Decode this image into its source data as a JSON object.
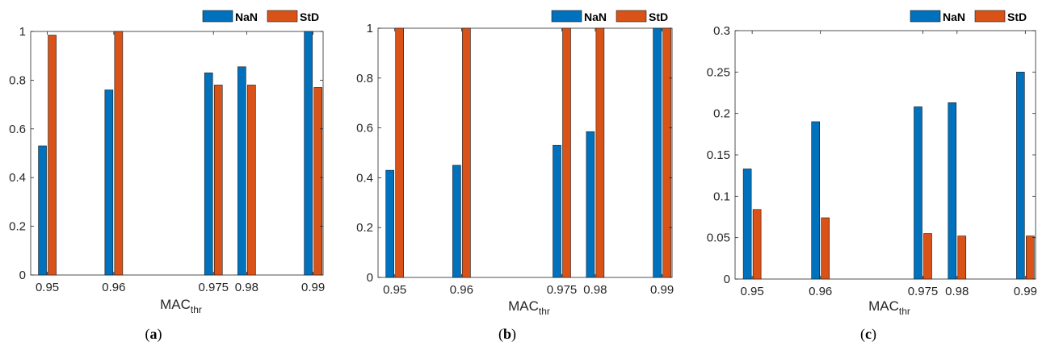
{
  "colors": {
    "NaN": "#0072BD",
    "StD": "#D95319"
  },
  "chart_data": [
    {
      "type": "bar",
      "panel": "(a)",
      "panel_letter": "a",
      "x": [
        0.95,
        0.96,
        0.975,
        0.98,
        0.99
      ],
      "x_tick_labels": [
        "0.95",
        "0.96",
        "0.975",
        "0.98",
        "0.99"
      ],
      "xlabel": "MAC",
      "xlabel_sub": "thr",
      "ylabel": "",
      "ylim": [
        0,
        1
      ],
      "y_ticks": [
        0,
        0.2,
        0.4,
        0.6,
        0.8,
        1
      ],
      "y_tick_labels": [
        "0",
        "0.2",
        "0.4",
        "0.6",
        "0.8",
        "1"
      ],
      "legend": "top-right",
      "series": [
        {
          "name": "NaN",
          "values": [
            0.53,
            0.76,
            0.83,
            0.855,
            1.0
          ]
        },
        {
          "name": "StD",
          "values": [
            0.985,
            1.0,
            0.78,
            0.78,
            0.77
          ]
        }
      ]
    },
    {
      "type": "bar",
      "panel": "(b)",
      "panel_letter": "b",
      "x": [
        0.95,
        0.96,
        0.975,
        0.98,
        0.99
      ],
      "x_tick_labels": [
        "0.95",
        "0.96",
        "0.975",
        "0.98",
        "0.99"
      ],
      "xlabel": "MAC",
      "xlabel_sub": "thr",
      "ylabel": "",
      "ylim": [
        0,
        1
      ],
      "y_ticks": [
        0,
        0.2,
        0.4,
        0.6,
        0.8,
        1
      ],
      "y_tick_labels": [
        "0",
        "0.2",
        "0.4",
        "0.6",
        "0.8",
        "1"
      ],
      "legend": "top-right",
      "series": [
        {
          "name": "NaN",
          "values": [
            0.43,
            0.45,
            0.53,
            0.585,
            1.0
          ]
        },
        {
          "name": "StD",
          "values": [
            1.0,
            1.0,
            1.0,
            1.0,
            1.0
          ]
        }
      ]
    },
    {
      "type": "bar",
      "panel": "(c)",
      "panel_letter": "c",
      "x": [
        0.95,
        0.96,
        0.975,
        0.98,
        0.99
      ],
      "x_tick_labels": [
        "0.95",
        "0.96",
        "0.975",
        "0.98",
        "0.99"
      ],
      "xlabel": "MAC",
      "xlabel_sub": "thr",
      "ylabel": "",
      "ylim": [
        0,
        0.3
      ],
      "y_ticks": [
        0,
        0.05,
        0.1,
        0.15,
        0.2,
        0.25,
        0.3
      ],
      "y_tick_labels": [
        "0",
        "0.05",
        "0.1",
        "0.15",
        "0.2",
        "0.25",
        "0.3"
      ],
      "legend": "top-right",
      "series": [
        {
          "name": "NaN",
          "values": [
            0.133,
            0.19,
            0.208,
            0.213,
            0.25
          ]
        },
        {
          "name": "StD",
          "values": [
            0.084,
            0.074,
            0.055,
            0.052,
            0.052
          ]
        }
      ]
    }
  ]
}
